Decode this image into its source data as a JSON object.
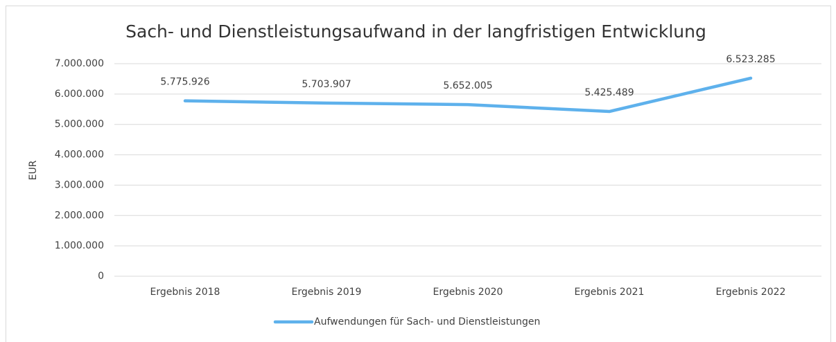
{
  "chart_data": {
    "type": "line",
    "title": "Sach- und Dienstleistungsaufwand in der langfristigen Entwicklung",
    "y_label": "EUR",
    "categories": [
      "Ergebnis 2018",
      "Ergebnis 2019",
      "Ergebnis 2020",
      "Ergebnis 2021",
      "Ergebnis 2022"
    ],
    "series": [
      {
        "name": "Aufwendungen für Sach- und Dienstleistungen",
        "color": "#5eb1ec",
        "values": [
          5775926,
          5703907,
          5652005,
          5425489,
          6523285
        ],
        "value_labels": [
          "5.775.926",
          "5.703.907",
          "5.652.005",
          "5.425.489",
          "6.523.285"
        ]
      }
    ],
    "ylim": [
      0,
      7000000
    ],
    "yticks": [
      0,
      {
        "value": 1000000,
        "label": "1.000.000"
      },
      {
        "value": 2000000,
        "label": "2.000.000"
      },
      {
        "value": 3000000,
        "label": "3.000.000"
      },
      {
        "value": 4000000,
        "label": "4.000.000"
      },
      {
        "value": 5000000,
        "label": "5.000.000"
      },
      {
        "value": 6000000,
        "label": "6.000.000"
      },
      {
        "value": 7000000,
        "label": "7.000.000"
      }
    ],
    "grid": true,
    "legend": "bottom"
  }
}
